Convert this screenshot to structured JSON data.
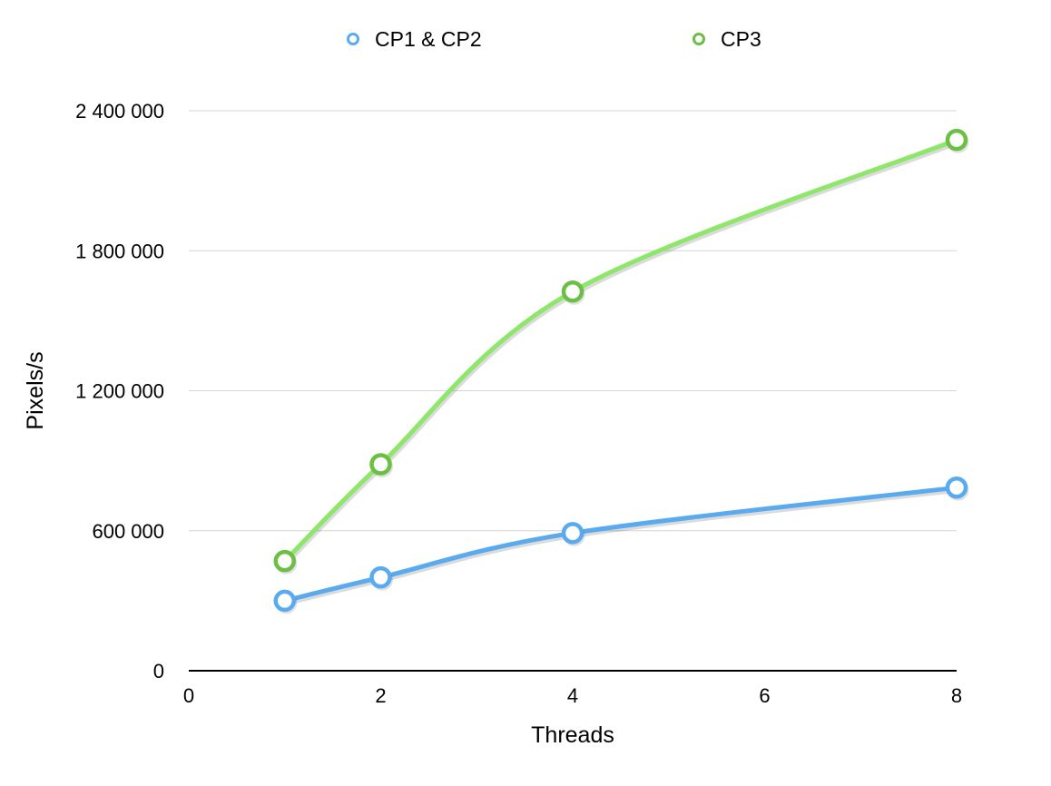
{
  "chart_data": {
    "type": "scatter",
    "xlabel": "Threads",
    "ylabel": "Pixels/s",
    "xlim": [
      0,
      8
    ],
    "ylim": [
      0,
      2400000
    ],
    "x_ticks": [
      {
        "value": 0,
        "label": "0"
      },
      {
        "value": 2,
        "label": "2"
      },
      {
        "value": 4,
        "label": "4"
      },
      {
        "value": 6,
        "label": "6"
      },
      {
        "value": 8,
        "label": "8"
      }
    ],
    "y_ticks": [
      {
        "value": 0,
        "label": "0"
      },
      {
        "value": 600000,
        "label": "600 000"
      },
      {
        "value": 1200000,
        "label": "1 200 000"
      },
      {
        "value": 1800000,
        "label": "1 800 000"
      },
      {
        "value": 2400000,
        "label": "2 400 000"
      }
    ],
    "grid": "horizontal",
    "legend_position": "top",
    "trendline": "smooth",
    "series": [
      {
        "name": "CP1 & CP2",
        "color": "#5aaaf0",
        "marker": "open-circle",
        "points": [
          {
            "x": 1,
            "y": 300000
          },
          {
            "x": 2,
            "y": 400000
          },
          {
            "x": 4,
            "y": 590000
          },
          {
            "x": 8,
            "y": 785000
          }
        ]
      },
      {
        "name": "CP3",
        "color": "#8ee66a",
        "marker_color": "#6cbf45",
        "marker": "open-circle",
        "points": [
          {
            "x": 1,
            "y": 470000
          },
          {
            "x": 2,
            "y": 885000
          },
          {
            "x": 4,
            "y": 1625000
          },
          {
            "x": 8,
            "y": 2275000
          }
        ]
      }
    ]
  }
}
